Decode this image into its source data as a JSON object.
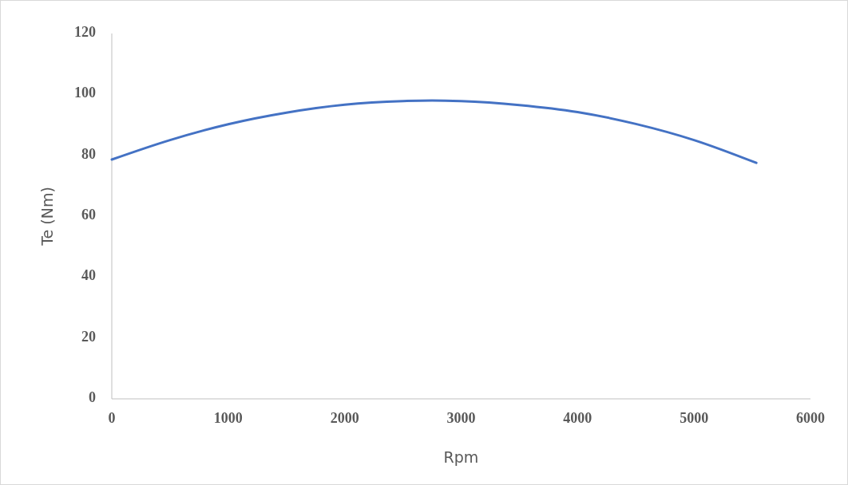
{
  "chart_data": {
    "type": "line",
    "xlabel": "Rpm",
    "ylabel": "Te (Nm)",
    "x": [
      0,
      500,
      1000,
      1500,
      2000,
      2500,
      2750,
      3000,
      3500,
      4000,
      4500,
      5000,
      5535
    ],
    "series": [
      {
        "color": "#4472c4",
        "values": [
          78.6,
          85.0,
          90.2,
          94.0,
          96.6,
          97.8,
          98.0,
          97.8,
          96.5,
          94.2,
          90.3,
          85.0,
          77.5
        ]
      }
    ],
    "xlim": [
      0,
      6000
    ],
    "xticks": [
      0,
      1000,
      2000,
      3000,
      4000,
      5000,
      6000
    ],
    "ylim": [
      0,
      120
    ],
    "yticks": [
      0,
      20,
      40,
      60,
      80,
      100,
      120
    ],
    "grid": false,
    "marker": "none",
    "line_style": "solid"
  }
}
